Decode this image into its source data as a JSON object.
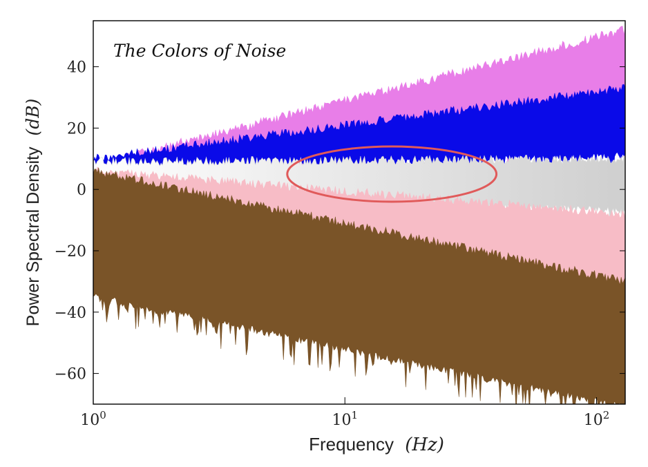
{
  "chart_data": {
    "type": "area",
    "title": "The Colors of Noise",
    "xlabel": "Frequency",
    "xlabel_unit": "(Hz)",
    "ylabel": "Power Spectral Density",
    "ylabel_unit": "(dB)",
    "x_scale": "log",
    "x_ticks": [
      {
        "value": 1,
        "base": "10",
        "exp": "0"
      },
      {
        "value": 10,
        "base": "10",
        "exp": "1"
      },
      {
        "value": 100,
        "base": "10",
        "exp": "2"
      }
    ],
    "xlim": [
      1,
      130
    ],
    "ylim": [
      -70,
      55
    ],
    "y_ticks": [
      40,
      20,
      0,
      -20,
      -40,
      -60
    ],
    "y_tick_labels": [
      "40",
      "20",
      "0",
      "−20",
      "−40",
      "−60"
    ],
    "grid": false,
    "legend": "none",
    "series": [
      {
        "color": "#e87ee8",
        "x_start": 1,
        "x_end": 130,
        "upper_start_db": 8,
        "upper_end_db": 52,
        "lower_start_db": 4,
        "lower_end_db": 16
      },
      {
        "color": "#0a0ae8",
        "x_start": 1,
        "x_end": 130,
        "upper_start_db": 10,
        "upper_end_db": 33,
        "lower_start_db": 6,
        "lower_end_db": 11
      },
      {
        "color": "#d9d9d9",
        "x_start": 1,
        "x_end": 130,
        "upper_start_db": 9,
        "upper_end_db": 10,
        "lower_start_db": -1,
        "lower_end_db": -7
      },
      {
        "color": "#f7bcc6",
        "x_start": 1,
        "x_end": 130,
        "upper_start_db": 6,
        "upper_end_db": -8,
        "lower_start_db": -12,
        "lower_end_db": -31
      },
      {
        "color": "#7a5428",
        "x_start": 1,
        "x_end": 130,
        "upper_start_db": 6,
        "upper_end_db": -30,
        "lower_start_db": -35,
        "lower_end_db": -71
      }
    ],
    "annotations": [
      {
        "shape": "ellipse",
        "color": "#e05a5a",
        "center_x": 15,
        "center_db": 5,
        "x_span": [
          5.9,
          40
        ],
        "db_span": [
          -4,
          14
        ]
      }
    ]
  }
}
